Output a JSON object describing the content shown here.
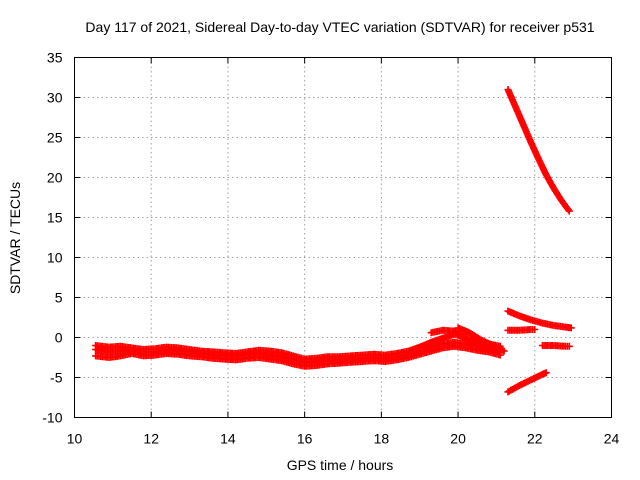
{
  "chart_data": {
    "type": "scatter",
    "title": "Day 117 of 2021, Sidereal Day-to-day VTEC variation (SDTVAR) for receiver p531",
    "xlabel": "GPS time / hours",
    "ylabel": "SDTVAR / TECUs",
    "xlim": [
      10,
      24
    ],
    "ylim": [
      -10,
      35
    ],
    "x_ticks": [
      10,
      12,
      14,
      16,
      18,
      20,
      22,
      24
    ],
    "x_tick_labels": [
      "10",
      "12",
      "14",
      "16",
      "18",
      "20",
      "22",
      "24"
    ],
    "y_ticks": [
      -10,
      -5,
      0,
      5,
      10,
      15,
      20,
      25,
      30,
      35
    ],
    "y_tick_labels": [
      "-10",
      "-5",
      "0",
      "5",
      "10",
      "15",
      "20",
      "25",
      "30",
      "35"
    ],
    "grid": true,
    "marker": "plus",
    "color": "#ff0000",
    "tracks": [
      {
        "x": [
          10.55,
          10.9,
          11.2,
          11.5,
          11.8,
          12.1,
          12.4,
          12.7,
          13.0,
          13.3,
          13.6,
          13.9,
          14.2,
          14.5,
          14.8,
          15.1,
          15.4,
          15.7,
          16.0,
          16.3,
          16.6,
          16.9,
          17.2,
          17.5,
          17.8,
          18.1,
          18.4,
          18.7,
          19.0,
          19.3,
          19.6,
          19.9,
          20.2,
          20.5,
          20.8,
          21.1
        ],
        "y": [
          -1.5,
          -1.8,
          -1.7,
          -1.6,
          -1.9,
          -1.8,
          -1.5,
          -1.6,
          -1.8,
          -2.0,
          -2.1,
          -2.2,
          -2.3,
          -2.1,
          -2.0,
          -2.2,
          -2.4,
          -2.8,
          -3.1,
          -3.0,
          -2.9,
          -2.8,
          -2.7,
          -2.6,
          -2.5,
          -2.6,
          -2.5,
          -2.2,
          -1.7,
          -1.2,
          -0.8,
          -0.6,
          -0.8,
          -1.0,
          -1.2,
          -1.6
        ]
      },
      {
        "x": [
          10.55,
          10.9,
          11.2,
          11.5,
          11.8,
          12.1,
          12.4,
          12.7,
          13.0,
          13.3,
          13.6,
          13.9,
          14.2,
          14.5,
          14.8,
          15.1,
          15.4,
          15.7,
          16.0,
          16.3,
          16.6,
          16.9,
          17.2,
          17.5,
          17.8,
          18.1,
          18.4,
          18.7,
          19.0,
          19.3,
          19.6,
          19.9,
          20.2,
          20.5,
          20.8,
          21.1
        ],
        "y": [
          -2.3,
          -2.5,
          -2.3,
          -2.0,
          -2.3,
          -2.2,
          -2.0,
          -2.1,
          -2.3,
          -2.4,
          -2.6,
          -2.7,
          -2.8,
          -2.6,
          -2.5,
          -2.7,
          -2.9,
          -3.3,
          -3.6,
          -3.5,
          -3.3,
          -3.2,
          -3.1,
          -3.0,
          -2.9,
          -3.0,
          -2.8,
          -2.5,
          -2.1,
          -1.7,
          -1.3,
          -1.1,
          -1.3,
          -1.6,
          -1.8,
          -2.2
        ]
      },
      {
        "x": [
          10.55,
          10.9,
          11.2,
          11.5,
          11.8,
          12.1,
          12.4,
          12.7,
          13.0,
          13.3,
          13.6,
          13.9,
          14.2,
          14.5,
          14.8,
          15.1,
          15.4,
          15.7,
          16.0,
          16.3,
          16.6,
          16.9,
          17.2,
          17.5,
          17.8,
          18.1,
          18.4,
          18.7,
          19.0,
          19.3,
          19.6,
          19.9,
          20.2,
          20.5,
          20.8,
          21.1
        ],
        "y": [
          -1.0,
          -1.2,
          -1.1,
          -1.3,
          -1.5,
          -1.4,
          -1.2,
          -1.3,
          -1.5,
          -1.7,
          -1.8,
          -1.9,
          -2.0,
          -1.8,
          -1.6,
          -1.7,
          -1.9,
          -2.3,
          -2.7,
          -2.6,
          -2.4,
          -2.4,
          -2.3,
          -2.2,
          -2.1,
          -2.2,
          -2.0,
          -1.7,
          -1.2,
          -0.6,
          -0.1,
          0.4,
          0.0,
          -0.4,
          -0.8,
          -1.1
        ]
      },
      {
        "x": [
          19.3,
          19.6,
          19.9,
          20.2,
          20.5,
          20.8,
          21.1
        ],
        "y": [
          0.6,
          0.9,
          0.8,
          -0.2,
          -0.9,
          -1.5,
          -1.9
        ]
      },
      {
        "x": [
          20.0,
          20.3,
          20.6,
          20.9,
          21.2
        ],
        "y": [
          1.2,
          0.6,
          -0.3,
          -1.0,
          -1.7
        ]
      },
      {
        "x": [
          21.3,
          21.5,
          21.7,
          21.9,
          22.1,
          22.3,
          22.5,
          22.7,
          22.9
        ],
        "y": [
          31.0,
          28.8,
          26.6,
          24.4,
          22.3,
          20.3,
          18.6,
          17.1,
          15.8
        ]
      },
      {
        "x": [
          21.3,
          21.6,
          21.9,
          22.2,
          22.5,
          22.8,
          22.95
        ],
        "y": [
          3.3,
          2.7,
          2.2,
          1.8,
          1.5,
          1.3,
          1.2
        ]
      },
      {
        "x": [
          21.3,
          21.6,
          21.9,
          22.0
        ],
        "y": [
          0.9,
          0.9,
          1.0,
          1.0
        ]
      },
      {
        "x": [
          22.2,
          22.5,
          22.8,
          22.9
        ],
        "y": [
          -1.0,
          -1.0,
          -1.1,
          -1.1
        ]
      },
      {
        "x": [
          21.3,
          21.6,
          21.9,
          22.2,
          22.3
        ],
        "y": [
          -6.8,
          -6.0,
          -5.3,
          -4.6,
          -4.4
        ]
      }
    ]
  }
}
